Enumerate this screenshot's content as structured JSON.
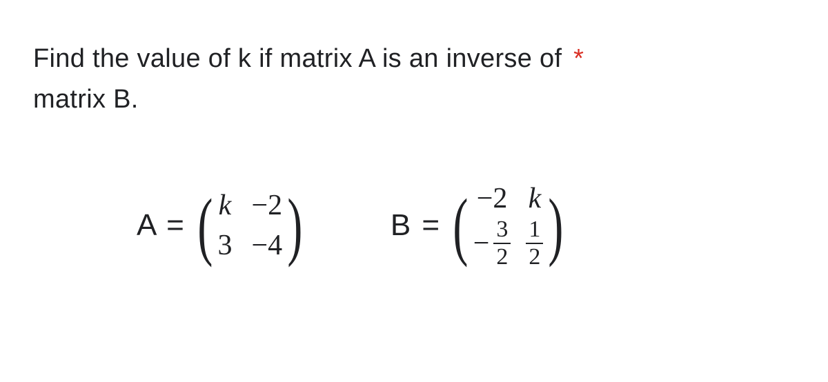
{
  "question": {
    "line1": "Find the value of k if matrix A is an inverse of",
    "line2": "matrix B.",
    "required_marker": "*"
  },
  "equations": {
    "A": {
      "label": "A =",
      "rows": [
        [
          "k",
          "−2"
        ],
        [
          "3",
          "−4"
        ]
      ]
    },
    "B": {
      "label": "B =",
      "rows": [
        {
          "c1": {
            "type": "plain",
            "value": "−2"
          },
          "c2": {
            "type": "plain",
            "value": "k"
          }
        },
        {
          "c1": {
            "type": "negfrac",
            "num": "3",
            "den": "2"
          },
          "c2": {
            "type": "frac",
            "num": "1",
            "den": "2"
          }
        }
      ]
    }
  },
  "style": {
    "text_color": "#202124",
    "asterisk_color": "#d93025",
    "background": "#ffffff"
  }
}
